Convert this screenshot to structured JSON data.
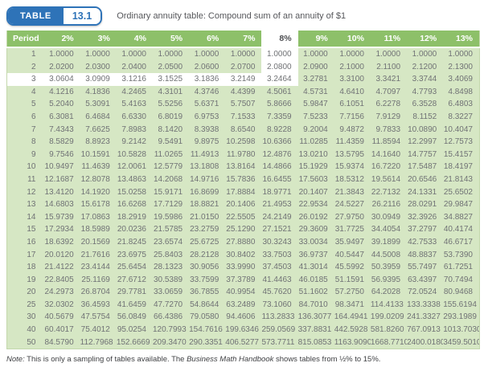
{
  "header": {
    "badge_label": "TABLE",
    "badge_number": "13.1",
    "title": "Ordinary annuity table: Compound sum of an annuity of $1"
  },
  "colors": {
    "badge_blue": "#2e73b8",
    "header_green": "#8dc069",
    "body_green": "#d6e7c4",
    "highlight_white": "#ffffff",
    "number_text": "#707275"
  },
  "table": {
    "columns": [
      "Period",
      "2%",
      "3%",
      "4%",
      "5%",
      "6%",
      "7%",
      "8%",
      "9%",
      "10%",
      "11%",
      "12%",
      "13%"
    ],
    "highlight": {
      "column": "8%",
      "period": "3"
    },
    "rows": [
      {
        "period": "1",
        "values": [
          "1.0000",
          "1.0000",
          "1.0000",
          "1.0000",
          "1.0000",
          "1.0000",
          "1.0000",
          "1.0000",
          "1.0000",
          "1.0000",
          "1.0000",
          "1.0000"
        ]
      },
      {
        "period": "2",
        "values": [
          "2.0200",
          "2.0300",
          "2.0400",
          "2.0500",
          "2.0600",
          "2.0700",
          "2.0800",
          "2.0900",
          "2.1000",
          "2.1100",
          "2.1200",
          "2.1300"
        ]
      },
      {
        "period": "3",
        "values": [
          "3.0604",
          "3.0909",
          "3.1216",
          "3.1525",
          "3.1836",
          "3.2149",
          "3.2464",
          "3.2781",
          "3.3100",
          "3.3421",
          "3.3744",
          "3.4069"
        ]
      },
      {
        "period": "4",
        "values": [
          "4.1216",
          "4.1836",
          "4.2465",
          "4.3101",
          "4.3746",
          "4.4399",
          "4.5061",
          "4.5731",
          "4.6410",
          "4.7097",
          "4.7793",
          "4.8498"
        ]
      },
      {
        "period": "5",
        "values": [
          "5.2040",
          "5.3091",
          "5.4163",
          "5.5256",
          "5.6371",
          "5.7507",
          "5.8666",
          "5.9847",
          "6.1051",
          "6.2278",
          "6.3528",
          "6.4803"
        ]
      },
      {
        "period": "6",
        "values": [
          "6.3081",
          "6.4684",
          "6.6330",
          "6.8019",
          "6.9753",
          "7.1533",
          "7.3359",
          "7.5233",
          "7.7156",
          "7.9129",
          "8.1152",
          "8.3227"
        ]
      },
      {
        "period": "7",
        "values": [
          "7.4343",
          "7.6625",
          "7.8983",
          "8.1420",
          "8.3938",
          "8.6540",
          "8.9228",
          "9.2004",
          "9.4872",
          "9.7833",
          "10.0890",
          "10.4047"
        ]
      },
      {
        "period": "8",
        "values": [
          "8.5829",
          "8.8923",
          "9.2142",
          "9.5491",
          "9.8975",
          "10.2598",
          "10.6366",
          "11.0285",
          "11.4359",
          "11.8594",
          "12.2997",
          "12.7573"
        ]
      },
      {
        "period": "9",
        "values": [
          "9.7546",
          "10.1591",
          "10.5828",
          "11.0265",
          "11.4913",
          "11.9780",
          "12.4876",
          "13.0210",
          "13.5795",
          "14.1640",
          "14.7757",
          "15.4157"
        ]
      },
      {
        "period": "10",
        "values": [
          "10.9497",
          "11.4639",
          "12.0061",
          "12.5779",
          "13.1808",
          "13.8164",
          "14.4866",
          "15.1929",
          "15.9374",
          "16.7220",
          "17.5487",
          "18.4197"
        ]
      },
      {
        "period": "11",
        "values": [
          "12.1687",
          "12.8078",
          "13.4863",
          "14.2068",
          "14.9716",
          "15.7836",
          "16.6455",
          "17.5603",
          "18.5312",
          "19.5614",
          "20.6546",
          "21.8143"
        ]
      },
      {
        "period": "12",
        "values": [
          "13.4120",
          "14.1920",
          "15.0258",
          "15.9171",
          "16.8699",
          "17.8884",
          "18.9771",
          "20.1407",
          "21.3843",
          "22.7132",
          "24.1331",
          "25.6502"
        ]
      },
      {
        "period": "13",
        "values": [
          "14.6803",
          "15.6178",
          "16.6268",
          "17.7129",
          "18.8821",
          "20.1406",
          "21.4953",
          "22.9534",
          "24.5227",
          "26.2116",
          "28.0291",
          "29.9847"
        ]
      },
      {
        "period": "14",
        "values": [
          "15.9739",
          "17.0863",
          "18.2919",
          "19.5986",
          "21.0150",
          "22.5505",
          "24.2149",
          "26.0192",
          "27.9750",
          "30.0949",
          "32.3926",
          "34.8827"
        ]
      },
      {
        "period": "15",
        "values": [
          "17.2934",
          "18.5989",
          "20.0236",
          "21.5785",
          "23.2759",
          "25.1290",
          "27.1521",
          "29.3609",
          "31.7725",
          "34.4054",
          "37.2797",
          "40.4174"
        ]
      },
      {
        "period": "16",
        "values": [
          "18.6392",
          "20.1569",
          "21.8245",
          "23.6574",
          "25.6725",
          "27.8880",
          "30.3243",
          "33.0034",
          "35.9497",
          "39.1899",
          "42.7533",
          "46.6717"
        ]
      },
      {
        "period": "17",
        "values": [
          "20.0120",
          "21.7616",
          "23.6975",
          "25.8403",
          "28.2128",
          "30.8402",
          "33.7503",
          "36.9737",
          "40.5447",
          "44.5008",
          "48.8837",
          "53.7390"
        ]
      },
      {
        "period": "18",
        "values": [
          "21.4122",
          "23.4144",
          "25.6454",
          "28.1323",
          "30.9056",
          "33.9990",
          "37.4503",
          "41.3014",
          "45.5992",
          "50.3959",
          "55.7497",
          "61.7251"
        ]
      },
      {
        "period": "19",
        "values": [
          "22.8405",
          "25.1169",
          "27.6712",
          "30.5389",
          "33.7599",
          "37.3789",
          "41.4463",
          "46.0185",
          "51.1591",
          "56.9395",
          "63.4397",
          "70.7494"
        ]
      },
      {
        "period": "20",
        "values": [
          "24.2973",
          "26.8704",
          "29.7781",
          "33.0659",
          "36.7855",
          "40.9954",
          "45.7620",
          "51.1602",
          "57.2750",
          "64.2028",
          "72.0524",
          "80.9468"
        ]
      },
      {
        "period": "25",
        "values": [
          "32.0302",
          "36.4593",
          "41.6459",
          "47.7270",
          "54.8644",
          "63.2489",
          "73.1060",
          "84.7010",
          "98.3471",
          "114.4133",
          "133.3338",
          "155.6194"
        ]
      },
      {
        "period": "30",
        "values": [
          "40.5679",
          "47.5754",
          "56.0849",
          "66.4386",
          "79.0580",
          "94.4606",
          "113.2833",
          "136.3077",
          "164.4941",
          "199.0209",
          "241.3327",
          "293.1989"
        ]
      },
      {
        "period": "40",
        "values": [
          "60.4017",
          "75.4012",
          "95.0254",
          "120.7993",
          "154.7616",
          "199.6346",
          "259.0569",
          "337.8831",
          "442.5928",
          "581.8260",
          "767.0913",
          "1013.7030"
        ]
      },
      {
        "period": "50",
        "values": [
          "84.5790",
          "112.7968",
          "152.6669",
          "209.3470",
          "290.3351",
          "406.5277",
          "573.7711",
          "815.0853",
          "1163.9090",
          "1668.7710",
          "2400.0180",
          "3459.5010"
        ]
      }
    ]
  },
  "note": {
    "prefix": "Note:",
    "text_before": " This is only a sampling of tables available. The ",
    "book": "Business Math Handbook",
    "text_after": " shows tables from ½% to 15%."
  }
}
